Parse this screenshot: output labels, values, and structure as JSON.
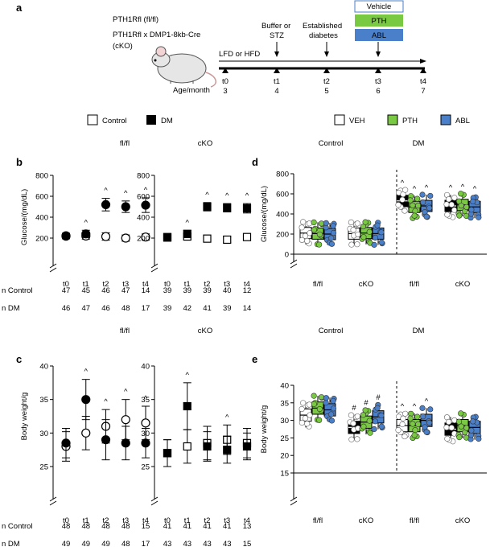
{
  "panel_a": {
    "letter": "a",
    "genotype_line1": "PTH1Rfl (fl/fl)",
    "genotype_line2": "PTH1Rfl x DMP1-8kb-Cre",
    "genotype_line3": "(cKO)",
    "diet": "LFD or HFD",
    "event1": "Buffer or",
    "event1b": "STZ",
    "event2": "Established",
    "event2b": "diabetes",
    "treatments": [
      "Vehicle",
      "PTH",
      "ABL"
    ],
    "timepoints": [
      "t0",
      "t1",
      "t2",
      "t3",
      "t4"
    ],
    "age_label": "Age/month",
    "ages": [
      "3",
      "4",
      "5",
      "6",
      "7"
    ],
    "colors": {
      "vehicle": "#ffffff",
      "pth": "#7ac943",
      "abl": "#4a7fc9",
      "dm": "#000000"
    }
  },
  "legend_left": {
    "control": "Control",
    "dm": "DM"
  },
  "legend_right": {
    "veh": "VEH",
    "pth": "PTH",
    "abl": "ABL"
  },
  "headers_top_left": [
    "fl/fl",
    "cKO"
  ],
  "headers_top_right": [
    "Control",
    "DM"
  ],
  "headers_bottom_left": [
    "fl/fl",
    "cKO"
  ],
  "headers_bottom_right": [
    "Control",
    "DM"
  ],
  "n_rows": {
    "b_labels": [
      "n Control",
      "n DM"
    ],
    "c_labels": [
      "n Control",
      "n DM"
    ]
  },
  "chart_data": [
    {
      "panel": "b",
      "type": "scatter",
      "subgroup": "fl/fl",
      "ylabel": "Glucose/(mg/dL)",
      "ylim": [
        0,
        800
      ],
      "yticks": [
        200,
        400,
        600,
        800
      ],
      "x": [
        "t0",
        "t1",
        "t2",
        "t3",
        "t4"
      ],
      "series": [
        {
          "name": "Control",
          "values": [
            218,
            220,
            215,
            200,
            210
          ],
          "err": [
            25,
            30,
            35,
            30,
            30
          ]
        },
        {
          "name": "DM",
          "values": [
            222,
            240,
            520,
            500,
            515
          ],
          "err": [
            25,
            35,
            60,
            55,
            70
          ]
        }
      ],
      "n_control": [
        "47",
        "45",
        "46",
        "47",
        "14"
      ],
      "n_dm": [
        "46",
        "47",
        "46",
        "48",
        "17"
      ],
      "annotations": [
        "^",
        "^",
        "^",
        "^"
      ],
      "annotation_x": [
        "t1",
        "t2",
        "t3",
        "t4"
      ]
    },
    {
      "panel": "b",
      "type": "scatter",
      "subgroup": "cKO",
      "ylim": [
        0,
        800
      ],
      "yticks": [
        200,
        400,
        600,
        800
      ],
      "x": [
        "t0",
        "t1",
        "t2",
        "t3",
        "t4"
      ],
      "series": [
        {
          "name": "Control",
          "values": [
            205,
            215,
            195,
            185,
            210
          ],
          "err": [
            25,
            25,
            25,
            25,
            25
          ]
        },
        {
          "name": "DM",
          "values": [
            210,
            240,
            500,
            490,
            485
          ],
          "err": [
            25,
            35,
            40,
            40,
            45
          ]
        }
      ],
      "n_control": [
        "39",
        "39",
        "39",
        "40",
        "12"
      ],
      "n_dm": [
        "39",
        "42",
        "41",
        "39",
        "14"
      ],
      "annotations": [
        "^",
        "^",
        "^",
        "^"
      ],
      "annotation_x": [
        "t1",
        "t2",
        "t3",
        "t4"
      ]
    },
    {
      "panel": "c",
      "type": "scatter",
      "subgroup": "fl/fl",
      "ylabel": "Body weight/g",
      "ylim": [
        25,
        40
      ],
      "yticks": [
        25,
        30,
        35,
        40
      ],
      "x": [
        "t0",
        "t1",
        "t2",
        "t3",
        "t4"
      ],
      "series": [
        {
          "name": "Control",
          "values": [
            28.0,
            30.0,
            31.0,
            32.0,
            31.5
          ],
          "err": [
            2.2,
            2.5,
            2.5,
            3.0,
            2.5
          ]
        },
        {
          "name": "DM",
          "values": [
            28.5,
            35.0,
            29.0,
            28.5,
            28.5
          ],
          "err": [
            2.2,
            3.0,
            3.0,
            2.5,
            2.2
          ]
        }
      ],
      "n_control": [
        "48",
        "48",
        "48",
        "48",
        "15"
      ],
      "n_dm": [
        "49",
        "49",
        "49",
        "48",
        "17"
      ],
      "annotations": [
        "^",
        "^",
        "^",
        "^"
      ],
      "annotation_x": [
        "t1",
        "t2",
        "t3",
        "t4"
      ]
    },
    {
      "panel": "c",
      "type": "scatter",
      "subgroup": "cKO",
      "ylim": [
        25,
        40
      ],
      "yticks": [
        25,
        30,
        35,
        40
      ],
      "x": [
        "t0",
        "t1",
        "t2",
        "t3",
        "t4"
      ],
      "series": [
        {
          "name": "Control",
          "values": [
            27.0,
            28.0,
            28.5,
            29.0,
            28.5
          ],
          "err": [
            2.0,
            2.5,
            2.5,
            2.2,
            2.2
          ]
        },
        {
          "name": "DM",
          "values": [
            27.0,
            34.0,
            28.0,
            27.5,
            28.0
          ],
          "err": [
            2.0,
            3.5,
            2.2,
            2.0,
            2.0
          ]
        }
      ],
      "n_control": [
        "41",
        "41",
        "41",
        "41",
        "13"
      ],
      "n_dm": [
        "43",
        "43",
        "43",
        "43",
        "15"
      ],
      "annotations": [
        "^",
        "^"
      ],
      "annotation_x": [
        "t1",
        "t3"
      ]
    },
    {
      "panel": "d",
      "type": "bar",
      "ylabel": "Glucose/(mg/dL)",
      "ylim": [
        0,
        800
      ],
      "yticks": [
        0,
        200,
        400,
        600,
        800
      ],
      "categories": [
        "fl/fl",
        "cKO",
        "fl/fl",
        "cKO"
      ],
      "series": [
        {
          "name": "VEH",
          "values": [
            210,
            205,
            530,
            480
          ]
        },
        {
          "name": "PTH",
          "values": [
            205,
            210,
            470,
            490
          ]
        },
        {
          "name": "ABL",
          "values": [
            200,
            205,
            480,
            470
          ]
        }
      ],
      "annotations": [
        "^",
        "^",
        "^",
        "^",
        "^",
        "^"
      ]
    },
    {
      "panel": "e",
      "type": "bar",
      "ylabel": "Body weight/g",
      "ylim": [
        15,
        40
      ],
      "yticks": [
        15,
        20,
        25,
        30,
        35,
        40
      ],
      "categories": [
        "fl/fl",
        "cKO",
        "fl/fl",
        "cKO"
      ],
      "series": [
        {
          "name": "VEH",
          "values": [
            31.5,
            28.0,
            28.5,
            27.5
          ]
        },
        {
          "name": "PTH",
          "values": [
            33.5,
            29.5,
            28.5,
            28.5
          ]
        },
        {
          "name": "ABL",
          "values": [
            33.0,
            31.0,
            30.0,
            28.0
          ]
        }
      ],
      "annotations": [
        "#",
        "#",
        "#",
        "^",
        "^",
        "^"
      ]
    }
  ]
}
